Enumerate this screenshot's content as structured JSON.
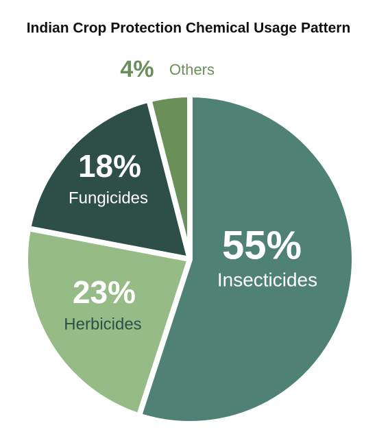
{
  "chart_data": {
    "type": "pie",
    "title": "Indian Crop Protection Chemical Usage Pattern",
    "categories": [
      "Insecticides",
      "Herbicides",
      "Fungicides",
      "Others"
    ],
    "values": [
      55,
      23,
      18,
      4
    ],
    "value_labels": [
      "55%",
      "23%",
      "18%",
      "4%"
    ],
    "colors": [
      "#4f8275",
      "#97bb87",
      "#2e4f48",
      "#6a8f58"
    ]
  }
}
